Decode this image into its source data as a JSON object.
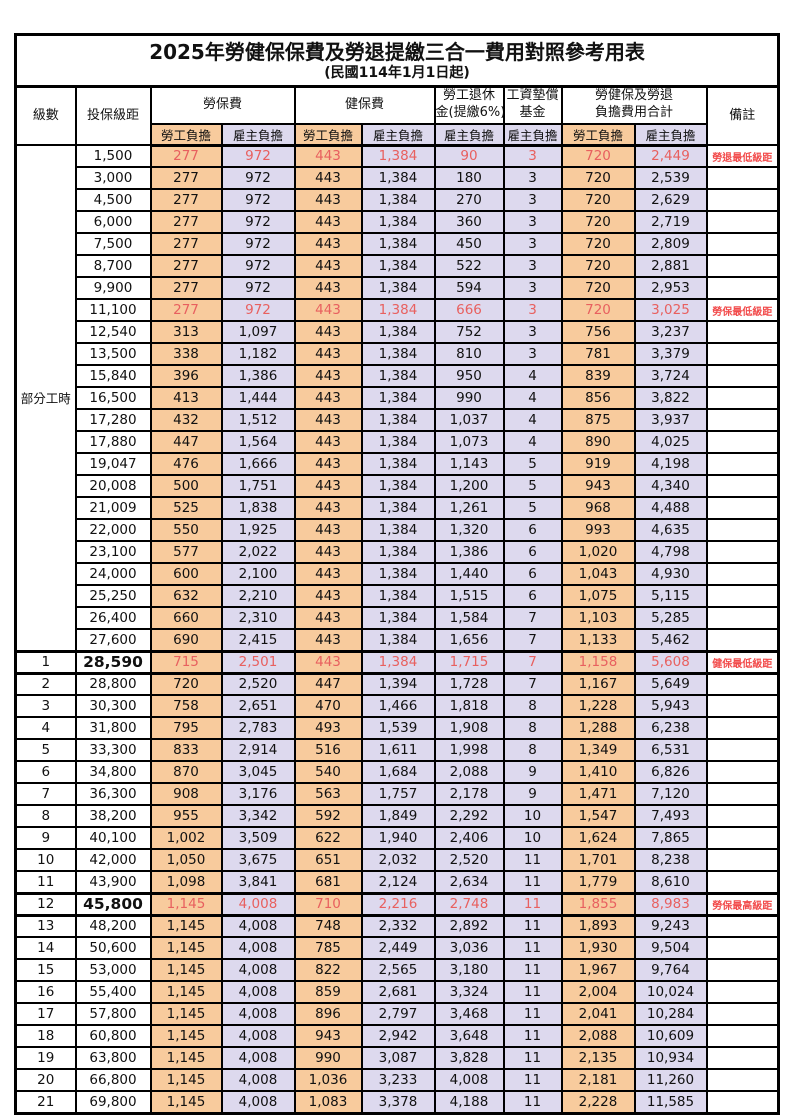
{
  "title": "2025年勞健保保費及勞退提繳三合一費用對照參考用表",
  "subtitle": "(民國114年1月1日起)",
  "header": {
    "level": "級數",
    "salary": "投保級距",
    "labor_fee": "勞保費",
    "health_fee": "健保費",
    "pension_line1": "勞工退休",
    "pension_line2": "金(提繳6%)",
    "fund_line1": "工資墊償",
    "fund_line2": "基金",
    "total_line1": "勞健保及勞退",
    "total_line2": "負擔費用合計",
    "note": "備註",
    "employee": "勞工負擔",
    "employer": "雇主負擔"
  },
  "colors": {
    "employee_col_bg": "#F8CB9D",
    "employer_col_bg": "#DDD9EE",
    "highlight_text": "#E8605F",
    "note_text": "#F24B4B",
    "border": "#000000"
  },
  "table": {
    "part_time_label": "部分工時",
    "part_time_rowspan": 23,
    "rows": [
      {
        "level": "",
        "salary": "1,500",
        "labor_emp": "277",
        "labor_er": "972",
        "health_emp": "443",
        "health_er": "1,384",
        "pension_er": "90",
        "fund_er": "3",
        "total_emp": "720",
        "total_er": "2,449",
        "note": "勞退最低級距",
        "red": true,
        "thick": false,
        "emph": false
      },
      {
        "level": "",
        "salary": "3,000",
        "labor_emp": "277",
        "labor_er": "972",
        "health_emp": "443",
        "health_er": "1,384",
        "pension_er": "180",
        "fund_er": "3",
        "total_emp": "720",
        "total_er": "2,539",
        "note": "",
        "red": false,
        "thick": false,
        "emph": false
      },
      {
        "level": "",
        "salary": "4,500",
        "labor_emp": "277",
        "labor_er": "972",
        "health_emp": "443",
        "health_er": "1,384",
        "pension_er": "270",
        "fund_er": "3",
        "total_emp": "720",
        "total_er": "2,629",
        "note": "",
        "red": false,
        "thick": false,
        "emph": false
      },
      {
        "level": "",
        "salary": "6,000",
        "labor_emp": "277",
        "labor_er": "972",
        "health_emp": "443",
        "health_er": "1,384",
        "pension_er": "360",
        "fund_er": "3",
        "total_emp": "720",
        "total_er": "2,719",
        "note": "",
        "red": false,
        "thick": false,
        "emph": false
      },
      {
        "level": "",
        "salary": "7,500",
        "labor_emp": "277",
        "labor_er": "972",
        "health_emp": "443",
        "health_er": "1,384",
        "pension_er": "450",
        "fund_er": "3",
        "total_emp": "720",
        "total_er": "2,809",
        "note": "",
        "red": false,
        "thick": false,
        "emph": false
      },
      {
        "level": "",
        "salary": "8,700",
        "labor_emp": "277",
        "labor_er": "972",
        "health_emp": "443",
        "health_er": "1,384",
        "pension_er": "522",
        "fund_er": "3",
        "total_emp": "720",
        "total_er": "2,881",
        "note": "",
        "red": false,
        "thick": false,
        "emph": false
      },
      {
        "level": "",
        "salary": "9,900",
        "labor_emp": "277",
        "labor_er": "972",
        "health_emp": "443",
        "health_er": "1,384",
        "pension_er": "594",
        "fund_er": "3",
        "total_emp": "720",
        "total_er": "2,953",
        "note": "",
        "red": false,
        "thick": false,
        "emph": false
      },
      {
        "level": "",
        "salary": "11,100",
        "labor_emp": "277",
        "labor_er": "972",
        "health_emp": "443",
        "health_er": "1,384",
        "pension_er": "666",
        "fund_er": "3",
        "total_emp": "720",
        "total_er": "3,025",
        "note": "勞保最低級距",
        "red": true,
        "thick": false,
        "emph": false
      },
      {
        "level": "",
        "salary": "12,540",
        "labor_emp": "313",
        "labor_er": "1,097",
        "health_emp": "443",
        "health_er": "1,384",
        "pension_er": "752",
        "fund_er": "3",
        "total_emp": "756",
        "total_er": "3,237",
        "note": "",
        "red": false,
        "thick": false,
        "emph": false
      },
      {
        "level": "",
        "salary": "13,500",
        "labor_emp": "338",
        "labor_er": "1,182",
        "health_emp": "443",
        "health_er": "1,384",
        "pension_er": "810",
        "fund_er": "3",
        "total_emp": "781",
        "total_er": "3,379",
        "note": "",
        "red": false,
        "thick": false,
        "emph": false
      },
      {
        "level": "",
        "salary": "15,840",
        "labor_emp": "396",
        "labor_er": "1,386",
        "health_emp": "443",
        "health_er": "1,384",
        "pension_er": "950",
        "fund_er": "4",
        "total_emp": "839",
        "total_er": "3,724",
        "note": "",
        "red": false,
        "thick": false,
        "emph": false
      },
      {
        "level": "",
        "salary": "16,500",
        "labor_emp": "413",
        "labor_er": "1,444",
        "health_emp": "443",
        "health_er": "1,384",
        "pension_er": "990",
        "fund_er": "4",
        "total_emp": "856",
        "total_er": "3,822",
        "note": "",
        "red": false,
        "thick": false,
        "emph": false
      },
      {
        "level": "",
        "salary": "17,280",
        "labor_emp": "432",
        "labor_er": "1,512",
        "health_emp": "443",
        "health_er": "1,384",
        "pension_er": "1,037",
        "fund_er": "4",
        "total_emp": "875",
        "total_er": "3,937",
        "note": "",
        "red": false,
        "thick": false,
        "emph": false
      },
      {
        "level": "",
        "salary": "17,880",
        "labor_emp": "447",
        "labor_er": "1,564",
        "health_emp": "443",
        "health_er": "1,384",
        "pension_er": "1,073",
        "fund_er": "4",
        "total_emp": "890",
        "total_er": "4,025",
        "note": "",
        "red": false,
        "thick": false,
        "emph": false
      },
      {
        "level": "",
        "salary": "19,047",
        "labor_emp": "476",
        "labor_er": "1,666",
        "health_emp": "443",
        "health_er": "1,384",
        "pension_er": "1,143",
        "fund_er": "5",
        "total_emp": "919",
        "total_er": "4,198",
        "note": "",
        "red": false,
        "thick": false,
        "emph": false
      },
      {
        "level": "",
        "salary": "20,008",
        "labor_emp": "500",
        "labor_er": "1,751",
        "health_emp": "443",
        "health_er": "1,384",
        "pension_er": "1,200",
        "fund_er": "5",
        "total_emp": "943",
        "total_er": "4,340",
        "note": "",
        "red": false,
        "thick": false,
        "emph": false
      },
      {
        "level": "",
        "salary": "21,009",
        "labor_emp": "525",
        "labor_er": "1,838",
        "health_emp": "443",
        "health_er": "1,384",
        "pension_er": "1,261",
        "fund_er": "5",
        "total_emp": "968",
        "total_er": "4,488",
        "note": "",
        "red": false,
        "thick": false,
        "emph": false
      },
      {
        "level": "",
        "salary": "22,000",
        "labor_emp": "550",
        "labor_er": "1,925",
        "health_emp": "443",
        "health_er": "1,384",
        "pension_er": "1,320",
        "fund_er": "6",
        "total_emp": "993",
        "total_er": "4,635",
        "note": "",
        "red": false,
        "thick": false,
        "emph": false
      },
      {
        "level": "",
        "salary": "23,100",
        "labor_emp": "577",
        "labor_er": "2,022",
        "health_emp": "443",
        "health_er": "1,384",
        "pension_er": "1,386",
        "fund_er": "6",
        "total_emp": "1,020",
        "total_er": "4,798",
        "note": "",
        "red": false,
        "thick": false,
        "emph": false
      },
      {
        "level": "",
        "salary": "24,000",
        "labor_emp": "600",
        "labor_er": "2,100",
        "health_emp": "443",
        "health_er": "1,384",
        "pension_er": "1,440",
        "fund_er": "6",
        "total_emp": "1,043",
        "total_er": "4,930",
        "note": "",
        "red": false,
        "thick": false,
        "emph": false
      },
      {
        "level": "",
        "salary": "25,250",
        "labor_emp": "632",
        "labor_er": "2,210",
        "health_emp": "443",
        "health_er": "1,384",
        "pension_er": "1,515",
        "fund_er": "6",
        "total_emp": "1,075",
        "total_er": "5,115",
        "note": "",
        "red": false,
        "thick": false,
        "emph": false
      },
      {
        "level": "",
        "salary": "26,400",
        "labor_emp": "660",
        "labor_er": "2,310",
        "health_emp": "443",
        "health_er": "1,384",
        "pension_er": "1,584",
        "fund_er": "7",
        "total_emp": "1,103",
        "total_er": "5,285",
        "note": "",
        "red": false,
        "thick": false,
        "emph": false
      },
      {
        "level": "",
        "salary": "27,600",
        "labor_emp": "690",
        "labor_er": "2,415",
        "health_emp": "443",
        "health_er": "1,384",
        "pension_er": "1,656",
        "fund_er": "7",
        "total_emp": "1,133",
        "total_er": "5,462",
        "note": "",
        "red": false,
        "thick": false,
        "emph": false
      },
      {
        "level": "1",
        "salary": "28,590",
        "labor_emp": "715",
        "labor_er": "2,501",
        "health_emp": "443",
        "health_er": "1,384",
        "pension_er": "1,715",
        "fund_er": "7",
        "total_emp": "1,158",
        "total_er": "5,608",
        "note": "健保最低級距",
        "red": true,
        "thick": true,
        "emph": true
      },
      {
        "level": "2",
        "salary": "28,800",
        "labor_emp": "720",
        "labor_er": "2,520",
        "health_emp": "447",
        "health_er": "1,394",
        "pension_er": "1,728",
        "fund_er": "7",
        "total_emp": "1,167",
        "total_er": "5,649",
        "note": "",
        "red": false,
        "thick": false,
        "emph": false
      },
      {
        "level": "3",
        "salary": "30,300",
        "labor_emp": "758",
        "labor_er": "2,651",
        "health_emp": "470",
        "health_er": "1,466",
        "pension_er": "1,818",
        "fund_er": "8",
        "total_emp": "1,228",
        "total_er": "5,943",
        "note": "",
        "red": false,
        "thick": false,
        "emph": false
      },
      {
        "level": "4",
        "salary": "31,800",
        "labor_emp": "795",
        "labor_er": "2,783",
        "health_emp": "493",
        "health_er": "1,539",
        "pension_er": "1,908",
        "fund_er": "8",
        "total_emp": "1,288",
        "total_er": "6,238",
        "note": "",
        "red": false,
        "thick": false,
        "emph": false
      },
      {
        "level": "5",
        "salary": "33,300",
        "labor_emp": "833",
        "labor_er": "2,914",
        "health_emp": "516",
        "health_er": "1,611",
        "pension_er": "1,998",
        "fund_er": "8",
        "total_emp": "1,349",
        "total_er": "6,531",
        "note": "",
        "red": false,
        "thick": false,
        "emph": false
      },
      {
        "level": "6",
        "salary": "34,800",
        "labor_emp": "870",
        "labor_er": "3,045",
        "health_emp": "540",
        "health_er": "1,684",
        "pension_er": "2,088",
        "fund_er": "9",
        "total_emp": "1,410",
        "total_er": "6,826",
        "note": "",
        "red": false,
        "thick": false,
        "emph": false
      },
      {
        "level": "7",
        "salary": "36,300",
        "labor_emp": "908",
        "labor_er": "3,176",
        "health_emp": "563",
        "health_er": "1,757",
        "pension_er": "2,178",
        "fund_er": "9",
        "total_emp": "1,471",
        "total_er": "7,120",
        "note": "",
        "red": false,
        "thick": false,
        "emph": false
      },
      {
        "level": "8",
        "salary": "38,200",
        "labor_emp": "955",
        "labor_er": "3,342",
        "health_emp": "592",
        "health_er": "1,849",
        "pension_er": "2,292",
        "fund_er": "10",
        "total_emp": "1,547",
        "total_er": "7,493",
        "note": "",
        "red": false,
        "thick": false,
        "emph": false
      },
      {
        "level": "9",
        "salary": "40,100",
        "labor_emp": "1,002",
        "labor_er": "3,509",
        "health_emp": "622",
        "health_er": "1,940",
        "pension_er": "2,406",
        "fund_er": "10",
        "total_emp": "1,624",
        "total_er": "7,865",
        "note": "",
        "red": false,
        "thick": false,
        "emph": false
      },
      {
        "level": "10",
        "salary": "42,000",
        "labor_emp": "1,050",
        "labor_er": "3,675",
        "health_emp": "651",
        "health_er": "2,032",
        "pension_er": "2,520",
        "fund_er": "11",
        "total_emp": "1,701",
        "total_er": "8,238",
        "note": "",
        "red": false,
        "thick": false,
        "emph": false
      },
      {
        "level": "11",
        "salary": "43,900",
        "labor_emp": "1,098",
        "labor_er": "3,841",
        "health_emp": "681",
        "health_er": "2,124",
        "pension_er": "2,634",
        "fund_er": "11",
        "total_emp": "1,779",
        "total_er": "8,610",
        "note": "",
        "red": false,
        "thick": false,
        "emph": false
      },
      {
        "level": "12",
        "salary": "45,800",
        "labor_emp": "1,145",
        "labor_er": "4,008",
        "health_emp": "710",
        "health_er": "2,216",
        "pension_er": "2,748",
        "fund_er": "11",
        "total_emp": "1,855",
        "total_er": "8,983",
        "note": "勞保最高級距",
        "red": true,
        "thick": true,
        "emph": true
      },
      {
        "level": "13",
        "salary": "48,200",
        "labor_emp": "1,145",
        "labor_er": "4,008",
        "health_emp": "748",
        "health_er": "2,332",
        "pension_er": "2,892",
        "fund_er": "11",
        "total_emp": "1,893",
        "total_er": "9,243",
        "note": "",
        "red": false,
        "thick": false,
        "emph": false
      },
      {
        "level": "14",
        "salary": "50,600",
        "labor_emp": "1,145",
        "labor_er": "4,008",
        "health_emp": "785",
        "health_er": "2,449",
        "pension_er": "3,036",
        "fund_er": "11",
        "total_emp": "1,930",
        "total_er": "9,504",
        "note": "",
        "red": false,
        "thick": false,
        "emph": false
      },
      {
        "level": "15",
        "salary": "53,000",
        "labor_emp": "1,145",
        "labor_er": "4,008",
        "health_emp": "822",
        "health_er": "2,565",
        "pension_er": "3,180",
        "fund_er": "11",
        "total_emp": "1,967",
        "total_er": "9,764",
        "note": "",
        "red": false,
        "thick": false,
        "emph": false
      },
      {
        "level": "16",
        "salary": "55,400",
        "labor_emp": "1,145",
        "labor_er": "4,008",
        "health_emp": "859",
        "health_er": "2,681",
        "pension_er": "3,324",
        "fund_er": "11",
        "total_emp": "2,004",
        "total_er": "10,024",
        "note": "",
        "red": false,
        "thick": false,
        "emph": false
      },
      {
        "level": "17",
        "salary": "57,800",
        "labor_emp": "1,145",
        "labor_er": "4,008",
        "health_emp": "896",
        "health_er": "2,797",
        "pension_er": "3,468",
        "fund_er": "11",
        "total_emp": "2,041",
        "total_er": "10,284",
        "note": "",
        "red": false,
        "thick": false,
        "emph": false
      },
      {
        "level": "18",
        "salary": "60,800",
        "labor_emp": "1,145",
        "labor_er": "4,008",
        "health_emp": "943",
        "health_er": "2,942",
        "pension_er": "3,648",
        "fund_er": "11",
        "total_emp": "2,088",
        "total_er": "10,609",
        "note": "",
        "red": false,
        "thick": false,
        "emph": false
      },
      {
        "level": "19",
        "salary": "63,800",
        "labor_emp": "1,145",
        "labor_er": "4,008",
        "health_emp": "990",
        "health_er": "3,087",
        "pension_er": "3,828",
        "fund_er": "11",
        "total_emp": "2,135",
        "total_er": "10,934",
        "note": "",
        "red": false,
        "thick": false,
        "emph": false
      },
      {
        "level": "20",
        "salary": "66,800",
        "labor_emp": "1,145",
        "labor_er": "4,008",
        "health_emp": "1,036",
        "health_er": "3,233",
        "pension_er": "4,008",
        "fund_er": "11",
        "total_emp": "2,181",
        "total_er": "11,260",
        "note": "",
        "red": false,
        "thick": false,
        "emph": false
      },
      {
        "level": "21",
        "salary": "69,800",
        "labor_emp": "1,145",
        "labor_er": "4,008",
        "health_emp": "1,083",
        "health_er": "3,378",
        "pension_er": "4,188",
        "fund_er": "11",
        "total_emp": "2,228",
        "total_er": "11,585",
        "note": "",
        "red": false,
        "thick": false,
        "emph": false
      }
    ]
  }
}
